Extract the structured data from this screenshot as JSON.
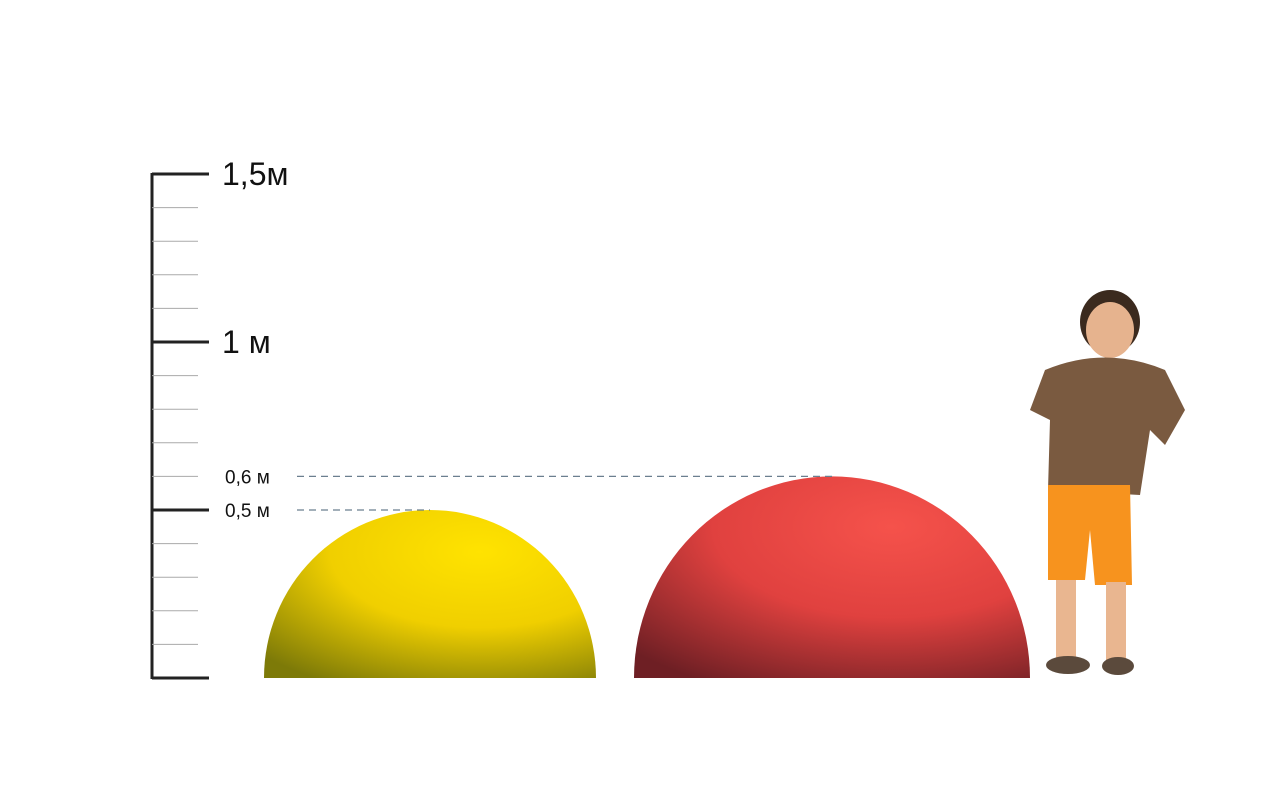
{
  "scale": {
    "major_labels": [
      {
        "value": 1.5,
        "text": "1,5м"
      },
      {
        "value": 1.0,
        "text": "1 м"
      }
    ],
    "minor_step_m": 0.1,
    "range_m": [
      0,
      1.5
    ]
  },
  "objects": [
    {
      "name": "yellow-hemisphere",
      "height_m": 0.5,
      "label": "0,5 м",
      "color": "#f2d200",
      "shade": "#7d7a08"
    },
    {
      "name": "red-hemisphere",
      "height_m": 0.6,
      "label": "0,6 м",
      "color": "#ef4b45",
      "shade": "#6e1f24"
    }
  ],
  "figure": {
    "name": "child-for-scale"
  },
  "colors": {
    "axis": "#222222",
    "minor_tick": "#aaaaaa",
    "dash": "#6b7f8f"
  }
}
